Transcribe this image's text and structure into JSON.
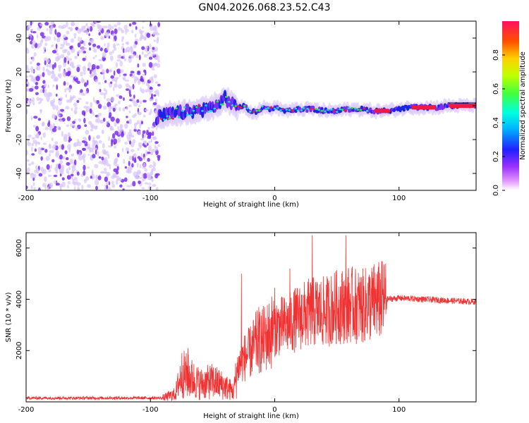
{
  "title": "GN04.2026.068.23.52.C43",
  "colors": {
    "snr_line": "#f03232",
    "spec_purple": "#7a2ff0",
    "spec_purple_light": "#d7c3fa",
    "spec_blue": "#1a24e6",
    "spec_cyan": "#18d8d0",
    "spec_green": "#2fe62f",
    "spec_red": "#f01844",
    "ridge_line": "#000000"
  },
  "chart_data": [
    {
      "type": "heatmap",
      "name": "spectrogram",
      "xlabel": "Height of straight line (km)",
      "ylabel": "Frequency (Hz)",
      "xlim": [
        -200,
        162
      ],
      "ylim": [
        -50,
        50
      ],
      "xticks": [
        -200,
        -100,
        0,
        100
      ],
      "yticks": [
        -40,
        -20,
        0,
        20,
        40
      ],
      "noise_region_x": [
        -200,
        -93
      ],
      "ridge": {
        "x": [
          -95,
          -85,
          -75,
          -65,
          -55,
          -45,
          -40,
          -35,
          -30,
          -25,
          -20,
          -15,
          -10,
          -5,
          0,
          10,
          20,
          30,
          40,
          50,
          60,
          70,
          80,
          90,
          100,
          110,
          120,
          130,
          140,
          150,
          162
        ],
        "y": [
          -7,
          -5,
          -4,
          -3,
          -2,
          1,
          5,
          1,
          -1,
          0,
          -3,
          -4,
          -1,
          -2,
          -1,
          -3,
          -2,
          -2,
          -3,
          -3,
          -2,
          -2,
          -3,
          -3,
          -2,
          -1,
          -1,
          -1,
          0,
          0,
          0
        ]
      }
    },
    {
      "type": "colorbar",
      "name": "amplitude-colorbar",
      "label": "Normalized spectral amplitude",
      "range": [
        0,
        1
      ],
      "ticks": [
        "0.0",
        "0.2",
        "0.4",
        "0.6",
        "0.8"
      ]
    },
    {
      "type": "line",
      "name": "snr",
      "xlabel": "Height of straight line (km)",
      "ylabel": "SNR (10 * v/v)",
      "xlim": [
        -200,
        162
      ],
      "ylim": [
        0,
        6600
      ],
      "xticks": [
        -200,
        -100,
        0,
        100
      ],
      "yticks": [
        2000,
        4000,
        6000
      ],
      "envelope": {
        "x": [
          -200,
          -90,
          -80,
          -75,
          -70,
          -60,
          -50,
          -40,
          -33,
          -30,
          -25,
          -20,
          -15,
          -10,
          -5,
          0,
          10,
          20,
          30,
          40,
          50,
          60,
          70,
          80,
          90,
          100,
          120,
          140,
          162
        ],
        "y": [
          150,
          150,
          300,
          1100,
          1000,
          700,
          800,
          600,
          400,
          1300,
          1700,
          1900,
          2300,
          2400,
          2600,
          2900,
          3000,
          3300,
          3500,
          3500,
          3700,
          3800,
          3700,
          3900,
          4000,
          4050,
          4000,
          3950,
          3900
        ]
      },
      "spikes": [
        {
          "x": -70,
          "y": 2100
        },
        {
          "x": -27,
          "y": 5000
        },
        {
          "x": -13,
          "y": 3700
        },
        {
          "x": 12,
          "y": 5200
        },
        {
          "x": 30,
          "y": 6500
        },
        {
          "x": 57,
          "y": 6500
        }
      ]
    }
  ]
}
